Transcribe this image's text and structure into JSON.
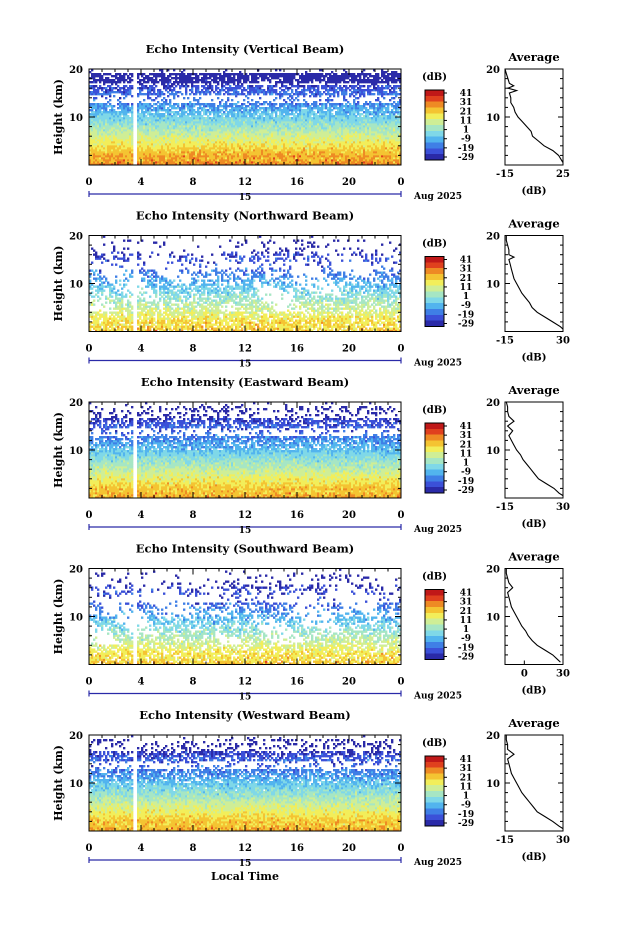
{
  "figure": {
    "time_axis_label": "Local Time",
    "date_day": "15",
    "date_month_year": "Aug 2025",
    "x_ticks": [
      "0",
      "4",
      "8",
      "12",
      "16",
      "20",
      "0"
    ],
    "height_ticks": [
      "20",
      "10"
    ],
    "height_label": "Height (km)",
    "colorbar_unit": "(dB)",
    "colorbar_ticks": [
      "41",
      "31",
      "21",
      "11",
      "1",
      "-9",
      "-19",
      "-29"
    ],
    "profile_title": "Average",
    "profile_unit": "(dB)"
  },
  "colors": {
    "colormap": [
      "#2a2aa8",
      "#3b50d8",
      "#3f7fe6",
      "#52b4ee",
      "#7fd8e8",
      "#a6e6c4",
      "#cfee96",
      "#f2ee5a",
      "#f4c432",
      "#ee8a24",
      "#e0401e",
      "#c01818"
    ]
  },
  "chart_data": [
    {
      "type": "heatmap",
      "title": "Echo Intensity (Vertical Beam)",
      "x_range": [
        0,
        24
      ],
      "y_range": [
        0,
        20
      ],
      "z_range": [
        -29,
        41
      ],
      "profile": {
        "title": "Average",
        "x_ticks": [
          "-15",
          "25"
        ],
        "x_range": [
          -15,
          25
        ],
        "heights": [
          0.5,
          1,
          2,
          3,
          4,
          5,
          6,
          7,
          8,
          9,
          10,
          11,
          12,
          13,
          14,
          15,
          15.5,
          16,
          16.5,
          17,
          18,
          19,
          20
        ],
        "values": [
          25,
          24,
          22,
          18,
          12,
          8,
          4,
          3,
          0,
          -3,
          -6,
          -8,
          -9,
          -11,
          -11,
          -12,
          -7,
          -13,
          -9,
          -12,
          -13,
          -14,
          -15
        ]
      }
    },
    {
      "type": "heatmap",
      "title": "Echo Intensity (Northward Beam)",
      "x_range": [
        0,
        24
      ],
      "y_range": [
        0,
        20
      ],
      "z_range": [
        -29,
        41
      ],
      "profile": {
        "title": "Average",
        "x_ticks": [
          "-15",
          "30"
        ],
        "x_range": [
          -15,
          30
        ],
        "heights": [
          0.5,
          1,
          2,
          3,
          4,
          5,
          6,
          7,
          8,
          9,
          10,
          11,
          12,
          13,
          14,
          15,
          15.5,
          16,
          17,
          18,
          19,
          20
        ],
        "values": [
          30,
          28,
          22,
          16,
          10,
          6,
          4,
          1,
          -2,
          -4,
          -6,
          -8,
          -9,
          -10,
          -11,
          -12,
          -8,
          -12,
          -12,
          -13,
          -14,
          -14
        ]
      }
    },
    {
      "type": "heatmap",
      "title": "Echo Intensity (Eastward Beam)",
      "x_range": [
        0,
        24
      ],
      "y_range": [
        0,
        20
      ],
      "z_range": [
        -29,
        41
      ],
      "profile": {
        "title": "Average",
        "x_ticks": [
          "-15",
          "30"
        ],
        "x_range": [
          -15,
          30
        ],
        "heights": [
          0.5,
          1,
          2,
          3,
          4,
          5,
          6,
          7,
          8,
          9,
          10,
          11,
          12,
          13,
          14,
          15,
          16,
          17,
          18,
          19,
          20
        ],
        "values": [
          30,
          27,
          23,
          17,
          11,
          8,
          5,
          2,
          -1,
          -3,
          -6,
          -8,
          -10,
          -12,
          -9,
          -13,
          -8,
          -12,
          -13,
          -13,
          -14
        ]
      }
    },
    {
      "type": "heatmap",
      "title": "Echo Intensity (Southward Beam)",
      "x_range": [
        0,
        24
      ],
      "y_range": [
        0,
        20
      ],
      "z_range": [
        -29,
        41
      ],
      "profile": {
        "title": "Average",
        "x_ticks": [
          "0",
          "30"
        ],
        "x_range": [
          -15,
          30
        ],
        "heights": [
          0.5,
          1,
          2,
          3,
          4,
          5,
          6,
          7,
          8,
          9,
          10,
          11,
          12,
          13,
          14,
          15,
          16,
          17,
          18,
          19,
          20
        ],
        "values": [
          28,
          26,
          22,
          16,
          10,
          6,
          3,
          1,
          -2,
          -4,
          -6,
          -8,
          -10,
          -11,
          -12,
          -13,
          -9,
          -12,
          -13,
          -14,
          -14
        ]
      }
    },
    {
      "type": "heatmap",
      "title": "Echo Intensity (Westward Beam)",
      "x_range": [
        0,
        24
      ],
      "y_range": [
        0,
        20
      ],
      "z_range": [
        -29,
        41
      ],
      "profile": {
        "title": "Average",
        "x_ticks": [
          "-15",
          "30"
        ],
        "x_range": [
          -15,
          30
        ],
        "heights": [
          0.5,
          1,
          2,
          3,
          4,
          5,
          6,
          7,
          8,
          9,
          10,
          11,
          12,
          13,
          14,
          15,
          16,
          17,
          18,
          19,
          20
        ],
        "values": [
          30,
          27,
          22,
          16,
          10,
          7,
          4,
          1,
          -2,
          -4,
          -6,
          -8,
          -10,
          -11,
          -12,
          -13,
          -8,
          -13,
          -13,
          -14,
          -14
        ]
      }
    }
  ]
}
